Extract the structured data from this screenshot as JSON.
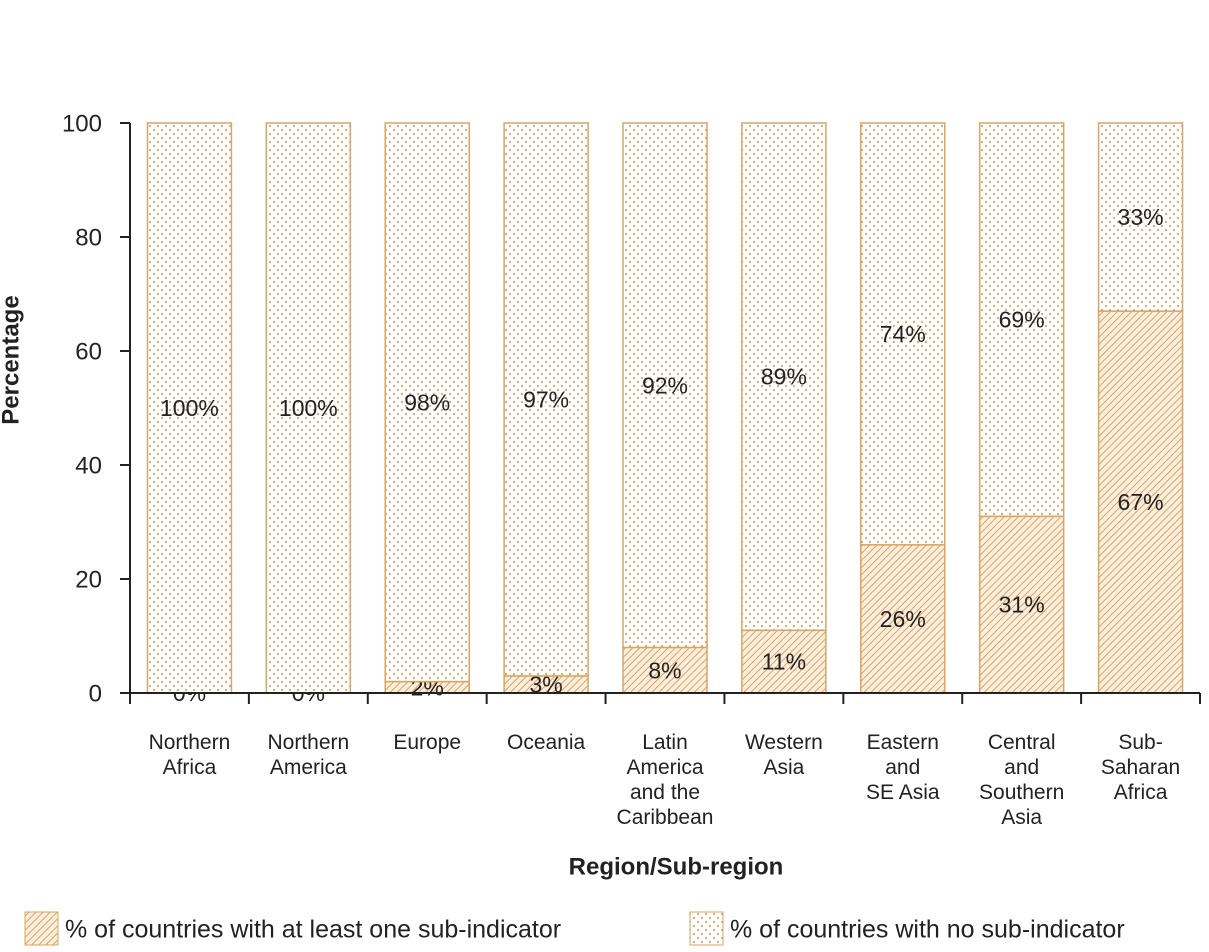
{
  "chart_data": {
    "type": "stacked_bar",
    "x_label": "Region/Sub-region",
    "y_label": "Percentage",
    "categories": [
      [
        "Northern",
        "Africa"
      ],
      [
        "Northern",
        "America"
      ],
      [
        "Europe"
      ],
      [
        "Oceania"
      ],
      [
        "Latin",
        "America",
        "and the",
        "Caribbean"
      ],
      [
        "Western",
        "Asia"
      ],
      [
        "Eastern",
        "and",
        "SE Asia"
      ],
      [
        "Central",
        "and",
        "Southern",
        "Asia"
      ],
      [
        "Sub-",
        "Saharan",
        "Africa"
      ]
    ],
    "series": [
      {
        "name": "% of countries with at least one sub-indicator",
        "color": "#d9a566",
        "pattern": "hatch",
        "values": [
          0,
          0,
          2,
          3,
          8,
          11,
          26,
          31,
          67
        ],
        "value_labels": [
          "0%",
          "0%",
          "2%",
          "3%",
          "8%",
          "11%",
          "26%",
          "31%",
          "67%"
        ]
      },
      {
        "name": "% of countries with no sub-indicator",
        "color": "#d9a566",
        "pattern": "dots",
        "values": [
          100,
          100,
          98,
          97,
          92,
          89,
          74,
          69,
          33
        ],
        "value_labels": [
          "100%",
          "100%",
          "98%",
          "97%",
          "92%",
          "89%",
          "74%",
          "69%",
          "33%"
        ]
      }
    ],
    "ylim": [
      0,
      100
    ],
    "yticks": [
      0,
      20,
      40,
      60,
      80,
      100
    ],
    "grid": false
  }
}
